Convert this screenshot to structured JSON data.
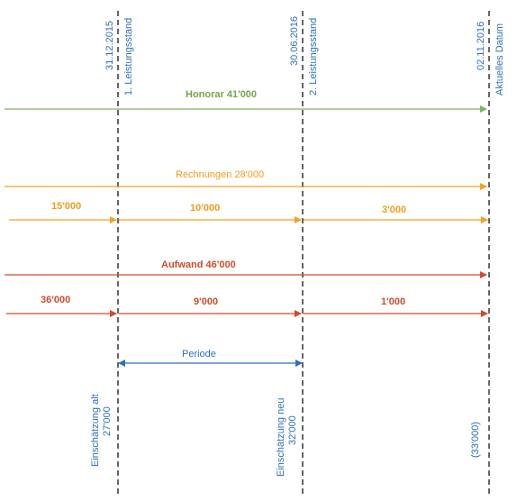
{
  "colors": {
    "blue": "#2f6fbf",
    "green": "#7ab55c",
    "orange": "#f7a021",
    "red": "#d24a2a",
    "grey": "#666666"
  },
  "columns": [
    {
      "date": "31.12.2015",
      "label": "1. Leistungsstand"
    },
    {
      "date": "30.06.2016",
      "label": "2. Leistungsstand"
    },
    {
      "date": "02.11.2016",
      "label": "Aktuelles Datum"
    }
  ],
  "honorar": {
    "label": "Honorar 41'000"
  },
  "rechnungen": {
    "label": "Rechnungen 28'000",
    "segments": [
      "15'000",
      "10'000",
      "3'000"
    ]
  },
  "aufwand": {
    "label": "Aufwand 46'000",
    "segments": [
      "36'000",
      "9'000",
      "1'000"
    ]
  },
  "periode": {
    "label": "Periode"
  },
  "einschaetzung": {
    "alt_title": "Einschätzung alt",
    "alt_value": "27'000",
    "neu_title": "Einschätzung neu",
    "neu_value": "32'000",
    "current_value": "(33'000)"
  }
}
